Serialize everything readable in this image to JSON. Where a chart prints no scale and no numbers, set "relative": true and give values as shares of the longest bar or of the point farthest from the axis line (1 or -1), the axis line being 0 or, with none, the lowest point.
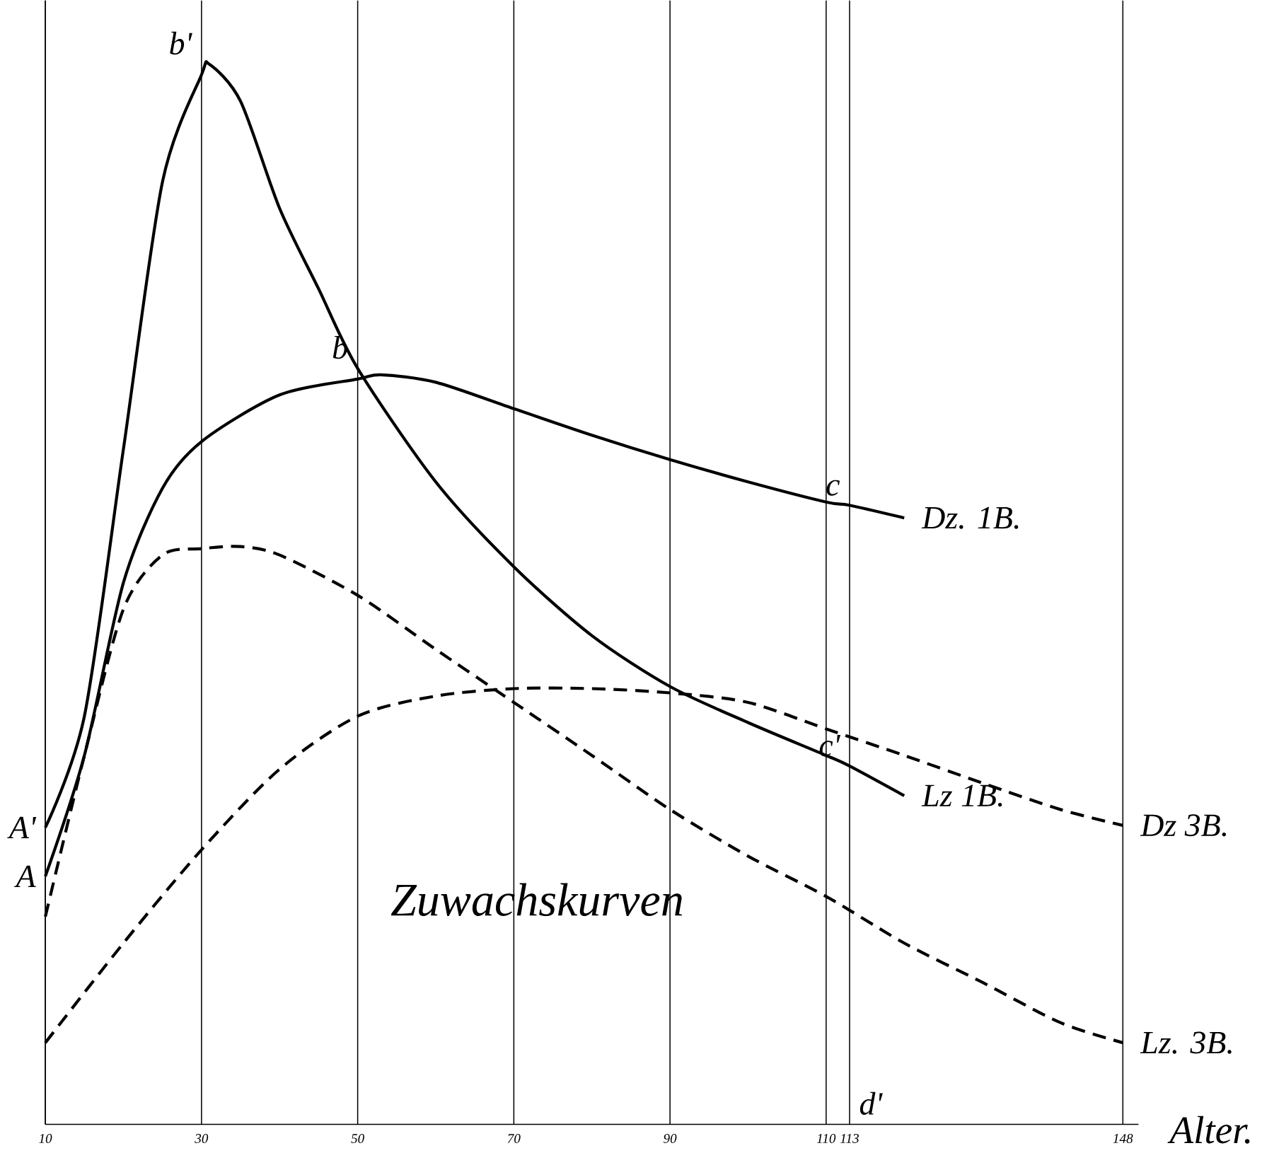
{
  "chart_data": {
    "type": "line",
    "relative": true,
    "xlabel": "Alter.",
    "xlim": [
      10,
      150
    ],
    "xticks": [
      10,
      30,
      50,
      70,
      90,
      110,
      113,
      148
    ],
    "grid": "x",
    "marker": "none",
    "series": [
      {
        "name": "Lz 1B.",
        "color": "#000000",
        "line_style": "solid",
        "x": [
          10,
          15,
          20,
          25,
          30,
          31,
          35,
          40,
          45,
          50,
          60,
          70,
          80,
          90,
          100,
          110,
          113,
          120
        ],
        "values": [
          0.28,
          0.385,
          0.637,
          0.889,
          0.99,
          1.0,
          0.965,
          0.864,
          0.788,
          0.713,
          0.606,
          0.526,
          0.461,
          0.413,
          0.379,
          0.348,
          0.338,
          0.31
        ]
      },
      {
        "name": "Dz. 1B.",
        "color": "#000000",
        "line_style": "solid",
        "x": [
          10,
          15,
          20,
          25,
          30,
          40,
          50,
          53,
          60,
          70,
          80,
          90,
          100,
          110,
          113,
          120
        ],
        "values": [
          0.234,
          0.348,
          0.511,
          0.6,
          0.644,
          0.688,
          0.703,
          0.707,
          0.7,
          0.675,
          0.65,
          0.627,
          0.606,
          0.587,
          0.584,
          0.572
        ]
      },
      {
        "name": "Lz. 3B.",
        "color": "#000000",
        "line_style": "dashed",
        "x": [
          10,
          15,
          20,
          25,
          30,
          35,
          40,
          50,
          60,
          70,
          80,
          90,
          100,
          110,
          120,
          130,
          140,
          148
        ],
        "values": [
          0.196,
          0.348,
          0.486,
          0.537,
          0.543,
          0.545,
          0.537,
          0.499,
          0.448,
          0.398,
          0.348,
          0.297,
          0.253,
          0.215,
          0.171,
          0.134,
          0.096,
          0.077
        ]
      },
      {
        "name": "Dz 3B.",
        "color": "#000000",
        "line_style": "dashed",
        "x": [
          10,
          20,
          30,
          40,
          50,
          60,
          70,
          80,
          90,
          100,
          110,
          120,
          130,
          140,
          148
        ],
        "values": [
          0.077,
          0.171,
          0.259,
          0.335,
          0.385,
          0.404,
          0.411,
          0.411,
          0.407,
          0.398,
          0.373,
          0.348,
          0.322,
          0.297,
          0.282
        ]
      }
    ],
    "annotations": [
      {
        "text": "b'",
        "x": 30,
        "y": 1.0
      },
      {
        "text": "b",
        "x": 50,
        "y": 0.713
      },
      {
        "text": "c",
        "x": 113,
        "y": 0.584
      },
      {
        "text": "c'",
        "x": 113,
        "y": 0.338
      },
      {
        "text": "A'",
        "x": 10,
        "y": 0.28
      },
      {
        "text": "A",
        "x": 10,
        "y": 0.234
      },
      "d'",
      "Zuwachskurven"
    ]
  }
}
